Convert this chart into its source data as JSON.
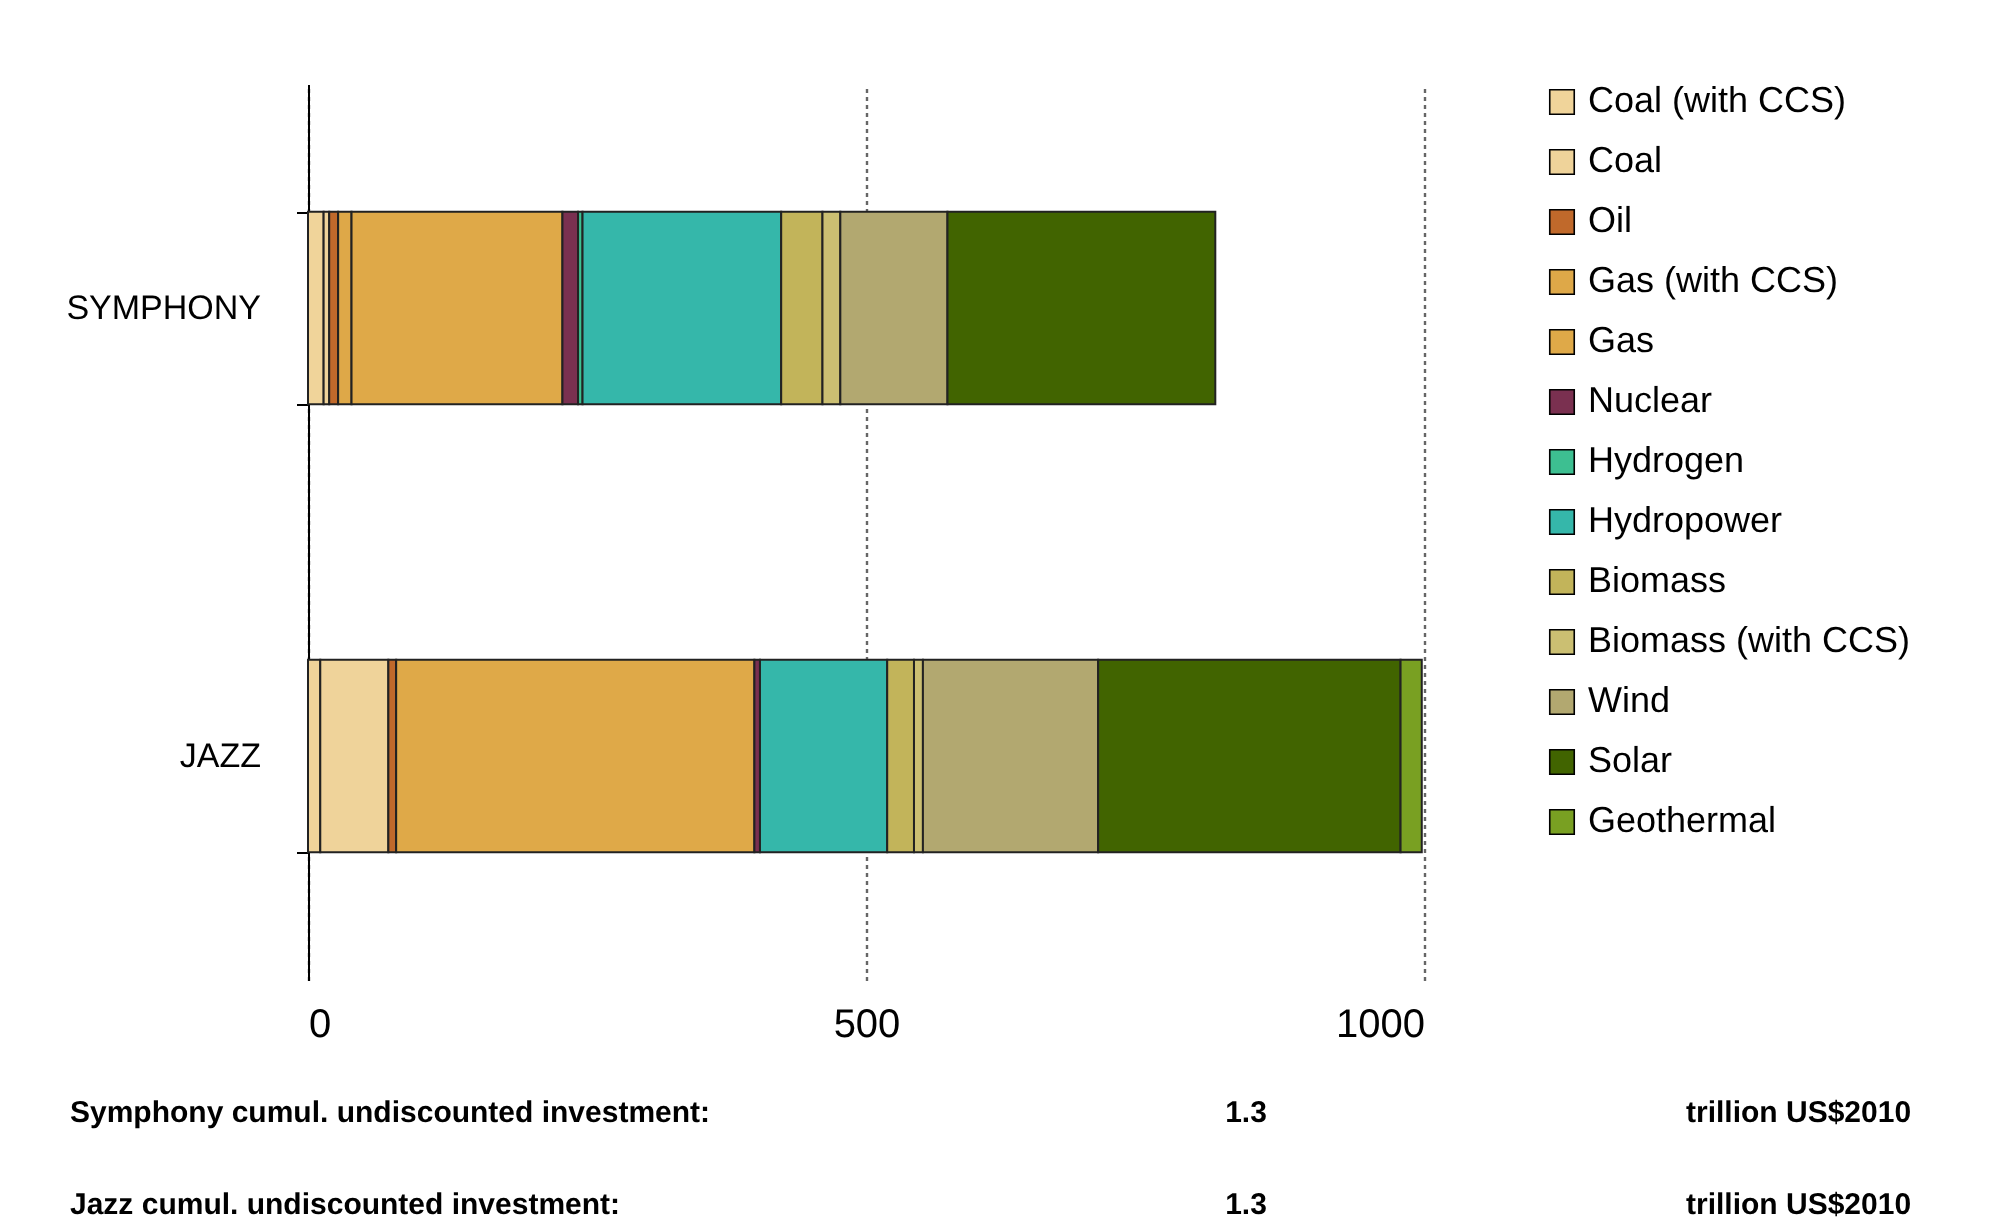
{
  "chart_data": {
    "type": "bar",
    "orientation": "horizontal",
    "stacked": true,
    "categories": [
      "SYMPHONY",
      "JAZZ"
    ],
    "series": [
      {
        "name": "Coal (with CCS)",
        "color": "#f0d49a",
        "values": [
          14,
          11
        ]
      },
      {
        "name": "Coal",
        "color": "#efd39a",
        "values": [
          5,
          61
        ]
      },
      {
        "name": "Oil",
        "color": "#c0692b",
        "values": [
          8,
          7
        ]
      },
      {
        "name": "Gas (with CCS)",
        "color": "#dea848",
        "values": [
          12,
          0
        ]
      },
      {
        "name": "Gas",
        "color": "#dfa948",
        "values": [
          189,
          321
        ]
      },
      {
        "name": "Nuclear",
        "color": "#7a3050",
        "values": [
          14,
          5
        ]
      },
      {
        "name": "Hydrogen",
        "color": "#3dbf91",
        "values": [
          4,
          0
        ]
      },
      {
        "name": "Hydropower",
        "color": "#35b7aa",
        "values": [
          178,
          114
        ]
      },
      {
        "name": "Biomass",
        "color": "#c2b45a",
        "values": [
          37,
          24
        ]
      },
      {
        "name": "Biomass (with CCS)",
        "color": "#cbbf72",
        "values": [
          16,
          8
        ]
      },
      {
        "name": "Wind",
        "color": "#b2a870",
        "values": [
          96,
          157
        ]
      },
      {
        "name": "Solar",
        "color": "#416400",
        "values": [
          240,
          271
        ]
      },
      {
        "name": "Geothermal",
        "color": "#79a022",
        "values": [
          0,
          19
        ]
      }
    ],
    "xlim": [
      0,
      1000
    ],
    "xticks": [
      0,
      500,
      1000
    ],
    "grid": "x",
    "legend": "right",
    "annotations": [
      "Symphony cumul. undiscounted investment:",
      "1.3",
      "trillion US$2010",
      "Jazz cumul. undiscounted investment:",
      "1.3",
      "trillion US$2010"
    ]
  }
}
